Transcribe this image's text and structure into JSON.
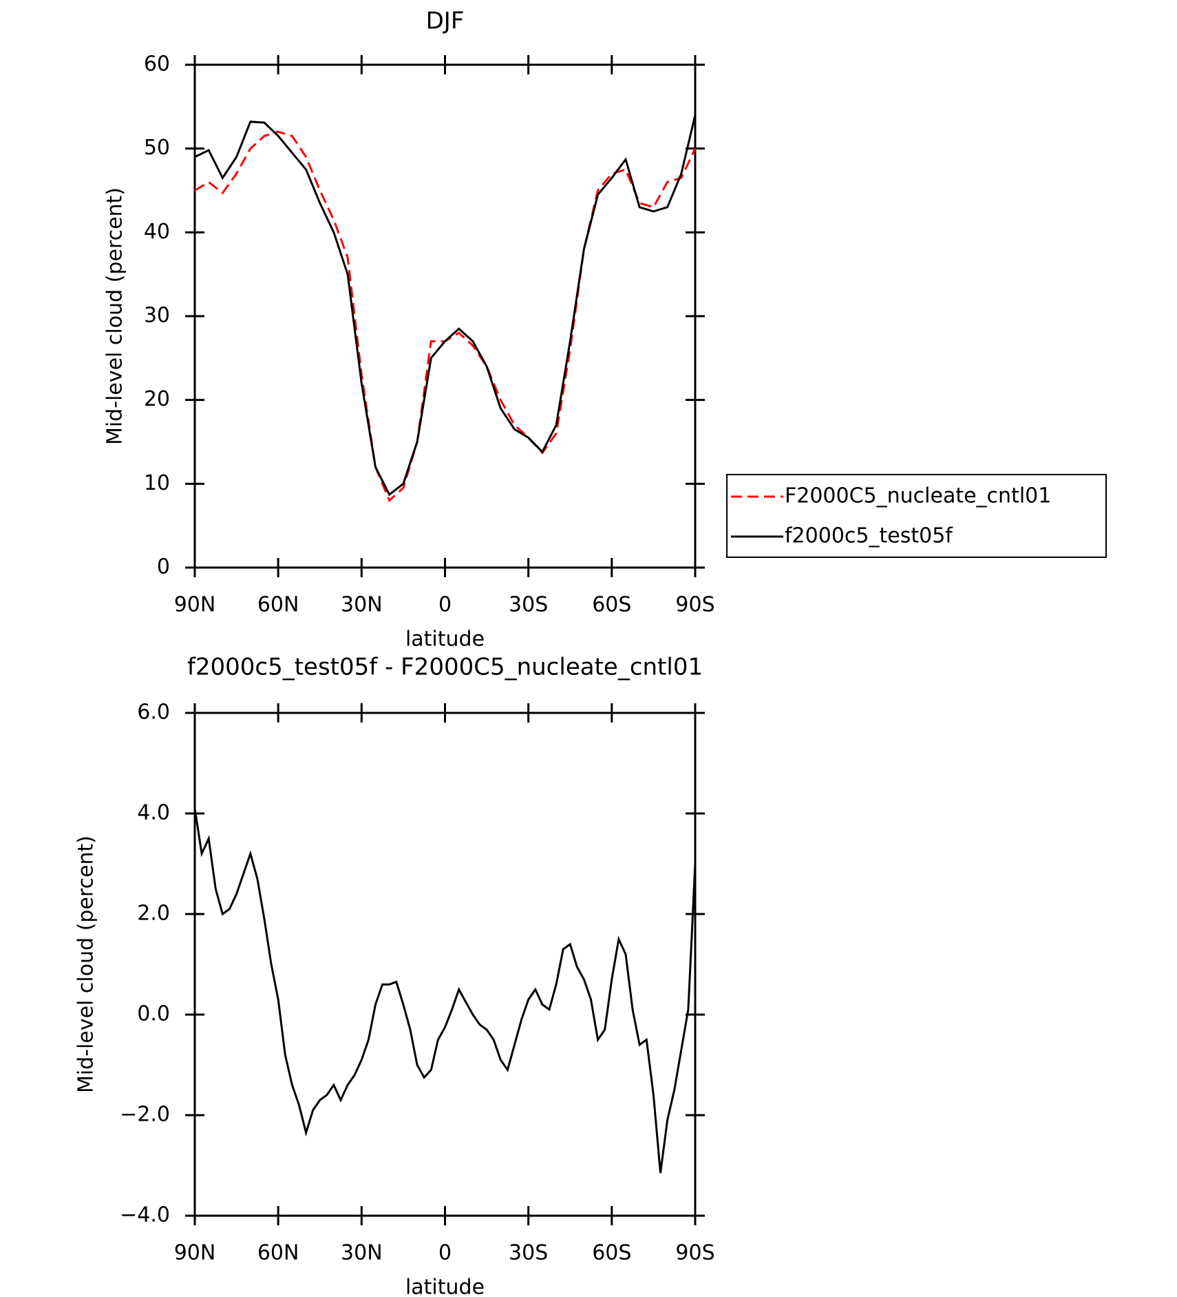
{
  "chart_data": [
    {
      "type": "line",
      "title": "DJF",
      "xlabel": "latitude",
      "ylabel": "Mid-level cloud (percent)",
      "x": [
        90,
        85,
        80,
        75,
        70,
        65,
        60,
        55,
        50,
        45,
        40,
        35,
        30,
        25,
        20,
        15,
        10,
        5,
        0,
        -5,
        -10,
        -15,
        -20,
        -25,
        -30,
        -35,
        -40,
        -45,
        -50,
        -55,
        -60,
        -65,
        -70,
        -75,
        -80,
        -85,
        -90
      ],
      "series": [
        {
          "name": "F2000C5_nucleate_cntl01",
          "color": "#ff0000",
          "line_style": "dashed",
          "values": [
            45,
            46,
            44.7,
            47,
            50,
            51.5,
            52,
            51.5,
            49,
            45,
            41.5,
            37,
            23,
            12,
            8,
            9.5,
            15,
            27,
            27,
            28,
            26.5,
            24,
            20,
            17,
            15.5,
            13.7,
            16,
            26,
            38,
            45,
            47,
            47.5,
            43.5,
            43,
            46,
            46.5,
            50
          ]
        },
        {
          "name": "f2000c5_test05f",
          "color": "#000000",
          "line_style": "solid",
          "values": [
            49,
            49.8,
            46.5,
            49,
            53.2,
            53.1,
            51.5,
            49.5,
            47.5,
            43.5,
            40,
            35,
            22,
            12,
            8.7,
            10,
            15,
            25,
            27,
            28.5,
            27,
            24,
            19,
            16.5,
            15.5,
            13.8,
            17,
            27,
            38,
            44.5,
            46.5,
            48.7,
            43,
            42.5,
            43,
            47,
            54
          ]
        }
      ],
      "xlim": [
        90,
        -90
      ],
      "xticks": [
        {
          "value": 90,
          "label": "90N"
        },
        {
          "value": 60,
          "label": "60N"
        },
        {
          "value": 30,
          "label": "30N"
        },
        0,
        {
          "value": -30,
          "label": "30S"
        },
        {
          "value": -60,
          "label": "60S"
        },
        {
          "value": -90,
          "label": "90S"
        }
      ],
      "ylim": [
        0,
        60
      ],
      "yticks": [
        0,
        10,
        20,
        30,
        40,
        50,
        60
      ],
      "legend": "right"
    },
    {
      "type": "line",
      "title": "f2000c5_test05f - F2000C5_nucleate_cntl01",
      "xlabel": "latitude",
      "ylabel": "Mid-level cloud (percent)",
      "x": [
        90,
        87.5,
        85,
        82.5,
        80,
        77.5,
        75,
        72.5,
        70,
        67.5,
        65,
        62.5,
        60,
        57.5,
        55,
        52.5,
        50,
        47.5,
        45,
        42.5,
        40,
        37.5,
        35,
        32.5,
        30,
        27.5,
        25,
        22.5,
        20,
        17.5,
        15,
        12.5,
        10,
        7.5,
        5,
        2.5,
        0,
        -2.5,
        -5,
        -7.5,
        -10,
        -12.5,
        -15,
        -17.5,
        -20,
        -22.5,
        -25,
        -27.5,
        -30,
        -32.5,
        -35,
        -37.5,
        -40,
        -42.5,
        -45,
        -47.5,
        -50,
        -52.5,
        -55,
        -57.5,
        -60,
        -62.5,
        -65,
        -67.5,
        -70,
        -72.5,
        -75,
        -77.5,
        -80,
        -82.5,
        -85,
        -87.5,
        -90
      ],
      "color": "#000000",
      "values": [
        4.1,
        3.2,
        3.5,
        2.5,
        2.0,
        2.1,
        2.4,
        2.8,
        3.2,
        2.7,
        1.9,
        1.0,
        0.3,
        -0.8,
        -1.4,
        -1.8,
        -2.35,
        -1.9,
        -1.7,
        -1.6,
        -1.4,
        -1.7,
        -1.4,
        -1.2,
        -0.9,
        -0.5,
        0.2,
        0.6,
        0.6,
        0.65,
        0.2,
        -0.3,
        -1.0,
        -1.25,
        -1.1,
        -0.5,
        -0.25,
        0.1,
        0.5,
        0.25,
        0.0,
        -0.2,
        -0.3,
        -0.5,
        -0.9,
        -1.1,
        -0.6,
        -0.1,
        0.3,
        0.5,
        0.2,
        0.1,
        0.6,
        1.3,
        1.4,
        0.95,
        0.7,
        0.3,
        -0.5,
        -0.3,
        0.7,
        1.5,
        1.2,
        0.1,
        -0.6,
        -0.5,
        -1.6,
        -3.15,
        -2.1,
        -1.5,
        -0.7,
        0.1,
        3.0
      ],
      "xlim": [
        90,
        -90
      ],
      "xticks": [
        {
          "value": 90,
          "label": "90N"
        },
        {
          "value": 60,
          "label": "60N"
        },
        {
          "value": 30,
          "label": "30N"
        },
        0,
        {
          "value": -30,
          "label": "30S"
        },
        {
          "value": -60,
          "label": "60S"
        },
        {
          "value": -90,
          "label": "90S"
        }
      ],
      "ylim": [
        -4,
        6
      ],
      "yticks": [
        {
          "value": -4,
          "label": "−4.0"
        },
        {
          "value": -2,
          "label": "−2.0"
        },
        {
          "value": 0,
          "label": "0.0"
        },
        {
          "value": 2,
          "label": "2.0"
        },
        {
          "value": 4,
          "label": "4.0"
        },
        {
          "value": 6,
          "label": "6.0"
        }
      ]
    }
  ]
}
